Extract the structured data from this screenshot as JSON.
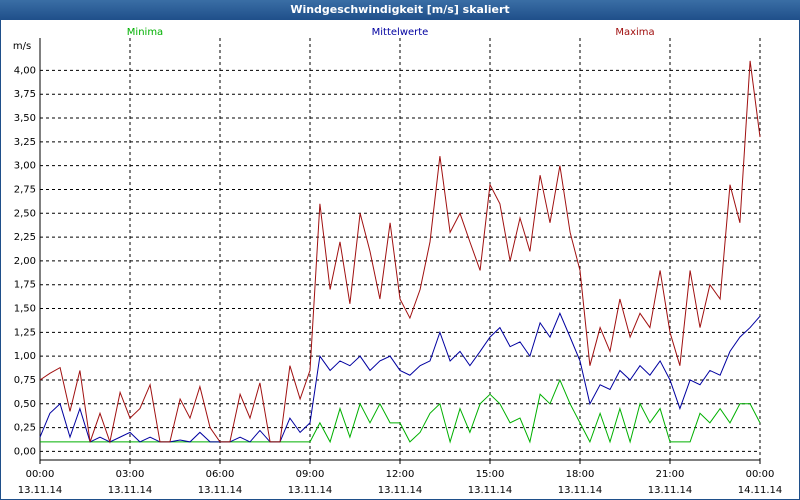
{
  "chart_data": {
    "type": "line",
    "title": "Windgeschwindigkeit [m/s] skaliert",
    "ylabel": "m/s",
    "x": [
      0,
      0.33,
      0.67,
      1,
      1.33,
      1.67,
      2,
      2.33,
      2.67,
      3,
      3.33,
      3.67,
      4,
      4.33,
      4.67,
      5,
      5.33,
      5.67,
      6,
      6.33,
      6.67,
      7,
      7.33,
      7.67,
      8,
      8.33,
      8.67,
      9,
      9.33,
      9.67,
      10,
      10.33,
      10.67,
      11,
      11.33,
      11.67,
      12,
      12.33,
      12.67,
      13,
      13.33,
      13.67,
      14,
      14.33,
      14.67,
      15,
      15.33,
      15.67,
      16,
      16.33,
      16.67,
      17,
      17.33,
      17.67,
      18,
      18.33,
      18.67,
      19,
      19.33,
      19.67,
      20,
      20.33,
      20.67,
      21,
      21.33,
      21.67,
      22,
      22.33,
      22.67,
      23,
      23.33,
      23.67,
      24
    ],
    "series": [
      {
        "name": "Minima",
        "color": "#00b000",
        "values": [
          0.1,
          0.1,
          0.1,
          0.1,
          0.1,
          0.1,
          0.1,
          0.1,
          0.1,
          0.1,
          0.1,
          0.1,
          0.1,
          0.1,
          0.1,
          0.1,
          0.1,
          0.1,
          0.1,
          0.1,
          0.1,
          0.1,
          0.1,
          0.1,
          0.1,
          0.1,
          0.1,
          0.1,
          0.3,
          0.1,
          0.45,
          0.15,
          0.5,
          0.3,
          0.5,
          0.3,
          0.3,
          0.1,
          0.2,
          0.4,
          0.5,
          0.1,
          0.45,
          0.2,
          0.5,
          0.6,
          0.5,
          0.3,
          0.35,
          0.1,
          0.6,
          0.5,
          0.75,
          0.5,
          0.3,
          0.1,
          0.4,
          0.1,
          0.45,
          0.1,
          0.5,
          0.3,
          0.45,
          0.1,
          0.1,
          0.1,
          0.4,
          0.3,
          0.45,
          0.3,
          0.5,
          0.5,
          0.3
        ]
      },
      {
        "name": "Mittelwerte",
        "color": "#0000a0",
        "values": [
          0.15,
          0.4,
          0.5,
          0.15,
          0.45,
          0.1,
          0.15,
          0.1,
          0.15,
          0.2,
          0.1,
          0.15,
          0.1,
          0.1,
          0.12,
          0.1,
          0.2,
          0.1,
          0.1,
          0.1,
          0.15,
          0.1,
          0.22,
          0.1,
          0.1,
          0.35,
          0.2,
          0.3,
          1.0,
          0.85,
          0.95,
          0.9,
          1.0,
          0.85,
          0.95,
          1.0,
          0.85,
          0.8,
          0.9,
          0.95,
          1.25,
          0.95,
          1.05,
          0.9,
          1.05,
          1.2,
          1.3,
          1.1,
          1.15,
          1.0,
          1.35,
          1.2,
          1.45,
          1.2,
          0.95,
          0.5,
          0.7,
          0.65,
          0.85,
          0.75,
          0.9,
          0.8,
          0.95,
          0.75,
          0.45,
          0.75,
          0.7,
          0.85,
          0.8,
          1.05,
          1.2,
          1.3,
          1.42
        ]
      },
      {
        "name": "Maxima",
        "color": "#a01010",
        "values": [
          0.75,
          0.82,
          0.88,
          0.42,
          0.85,
          0.1,
          0.4,
          0.1,
          0.62,
          0.35,
          0.45,
          0.7,
          0.1,
          0.1,
          0.55,
          0.35,
          0.68,
          0.25,
          0.1,
          0.1,
          0.6,
          0.35,
          0.72,
          0.1,
          0.1,
          0.9,
          0.55,
          0.85,
          2.6,
          1.7,
          2.2,
          1.55,
          2.5,
          2.1,
          1.6,
          2.4,
          1.6,
          1.4,
          1.7,
          2.2,
          3.1,
          2.3,
          2.5,
          2.2,
          1.9,
          2.8,
          2.6,
          2.0,
          2.45,
          2.1,
          2.9,
          2.4,
          3.0,
          2.3,
          1.9,
          0.9,
          1.3,
          1.05,
          1.6,
          1.2,
          1.45,
          1.3,
          1.9,
          1.25,
          0.9,
          1.9,
          1.3,
          1.75,
          1.6,
          2.8,
          2.4,
          4.1,
          3.3
        ]
      }
    ],
    "legend": "top",
    "xlim": [
      0,
      24
    ],
    "xticks": [
      {
        "value": 0,
        "label": "00:00",
        "date": "13.11.14"
      },
      {
        "value": 3,
        "label": "03:00",
        "date": "13.11.14"
      },
      {
        "value": 6,
        "label": "06:00",
        "date": "13.11.14"
      },
      {
        "value": 9,
        "label": "09:00",
        "date": "13.11.14"
      },
      {
        "value": 12,
        "label": "12:00",
        "date": "13.11.14"
      },
      {
        "value": 15,
        "label": "15:00",
        "date": "13.11.14"
      },
      {
        "value": 18,
        "label": "18:00",
        "date": "13.11.14"
      },
      {
        "value": 21,
        "label": "21:00",
        "date": "13.11.14"
      },
      {
        "value": 24,
        "label": "00:00",
        "date": "14.11.14"
      }
    ],
    "ylim": [
      -0.09,
      4.34
    ],
    "yticks": [
      {
        "value": 0,
        "label": "0,00"
      },
      {
        "value": 0.25,
        "label": "0,25"
      },
      {
        "value": 0.5,
        "label": "0,50"
      },
      {
        "value": 0.75,
        "label": "0,75"
      },
      {
        "value": 1,
        "label": "1,00"
      },
      {
        "value": 1.25,
        "label": "1,25"
      },
      {
        "value": 1.5,
        "label": "1,50"
      },
      {
        "value": 1.75,
        "label": "1,75"
      },
      {
        "value": 2,
        "label": "2,00"
      },
      {
        "value": 2.25,
        "label": "2,25"
      },
      {
        "value": 2.5,
        "label": "2,50"
      },
      {
        "value": 2.75,
        "label": "2,75"
      },
      {
        "value": 3,
        "label": "3,00"
      },
      {
        "value": 3.25,
        "label": "3,25"
      },
      {
        "value": 3.5,
        "label": "3,50"
      },
      {
        "value": 3.75,
        "label": "3,75"
      },
      {
        "value": 4,
        "label": "4,00"
      }
    ],
    "grid": true
  }
}
